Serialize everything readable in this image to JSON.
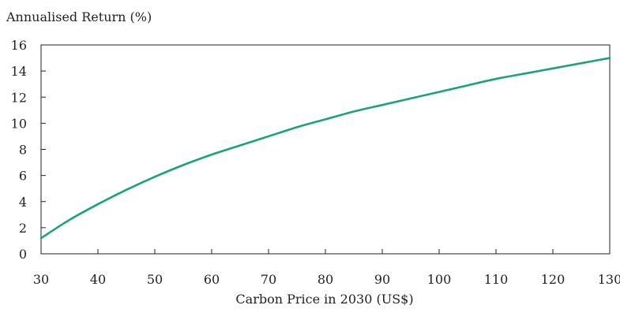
{
  "chart_data": {
    "type": "line",
    "title": "",
    "ylabel": "Annualised Return (%)",
    "xlabel": "Carbon Price in 2030 (US$)",
    "xlim": [
      30,
      130
    ],
    "ylim": [
      0,
      16
    ],
    "xticks": [
      30,
      40,
      50,
      60,
      70,
      80,
      90,
      100,
      110,
      120,
      130
    ],
    "yticks": [
      0,
      2,
      4,
      6,
      8,
      10,
      12,
      14,
      16
    ],
    "grid": false,
    "line_color": "#1aa37a",
    "series": [
      {
        "x": [
          30,
          35,
          40,
          45,
          50,
          55,
          60,
          65,
          70,
          75,
          80,
          85,
          90,
          95,
          100,
          105,
          110,
          115,
          120,
          125,
          130
        ],
        "y": [
          1.2,
          2.6,
          3.8,
          4.9,
          5.9,
          6.8,
          7.6,
          8.3,
          9.0,
          9.7,
          10.3,
          10.9,
          11.4,
          11.9,
          12.4,
          12.9,
          13.4,
          13.8,
          14.2,
          14.6,
          15.0
        ]
      }
    ]
  }
}
